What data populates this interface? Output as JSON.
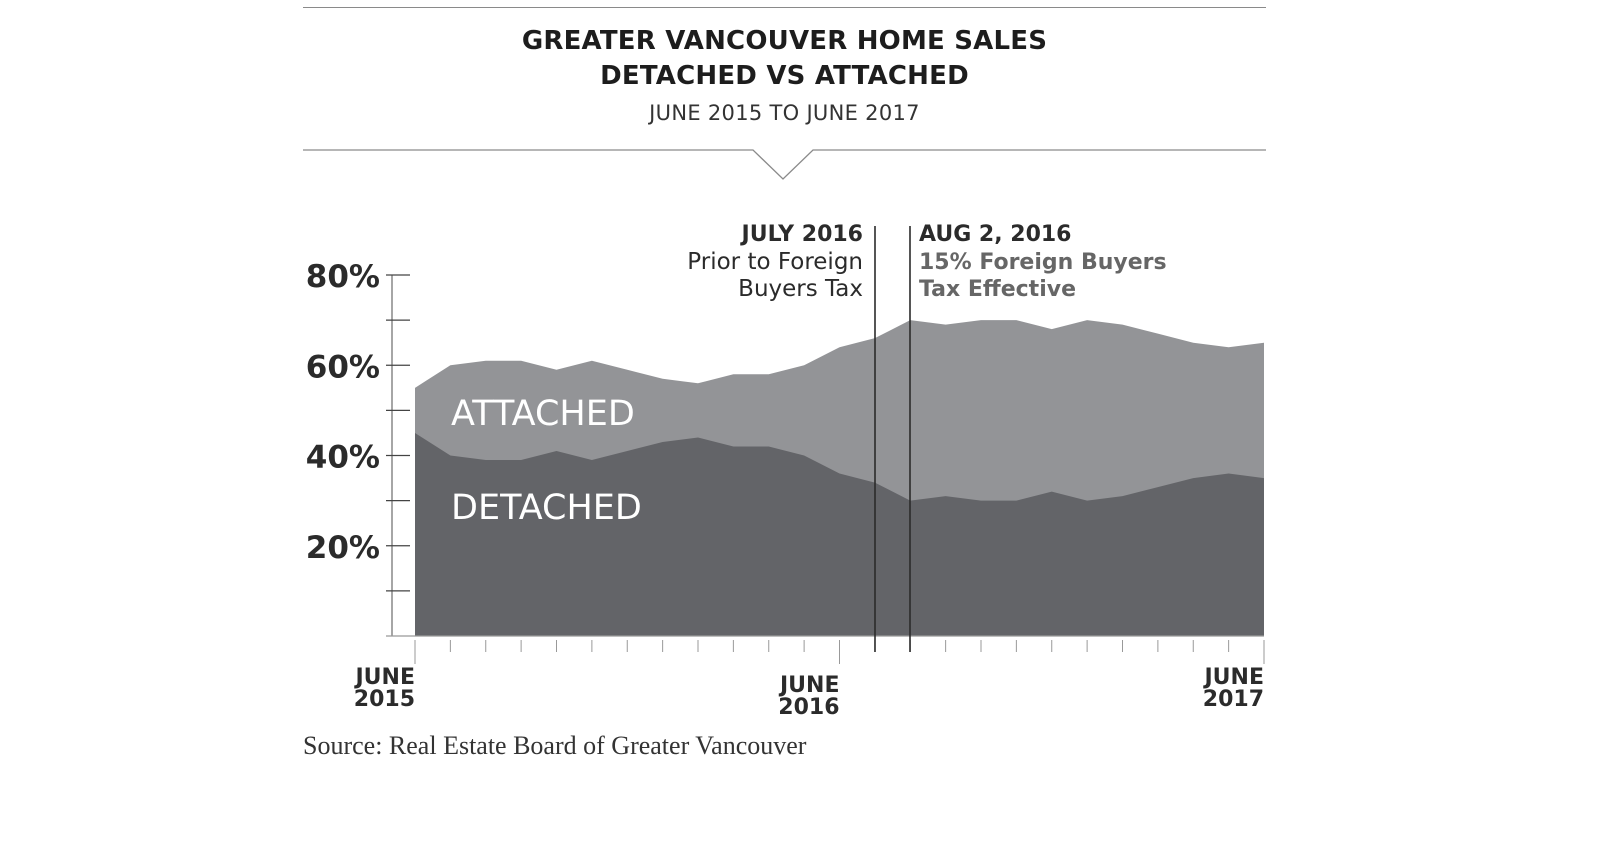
{
  "header": {
    "title_line1": "GREATER VANCOUVER HOME SALES",
    "title_line2": "DETACHED VS ATTACHED",
    "subtitle": "JUNE 2015 TO JUNE 2017"
  },
  "annotations": [
    {
      "heading": "JULY 2016",
      "lines": [
        "Prior to Foreign",
        "Buyers Tax"
      ],
      "month_index": 13,
      "align": "right"
    },
    {
      "heading": "AUG 2, 2016",
      "lines": [
        "15% Foreign Buyers",
        "Tax Effective"
      ],
      "month_index": 14,
      "align": "left"
    }
  ],
  "source": "Source: Real Estate Board of Greater Vancouver",
  "colors": {
    "attached": "#939497",
    "detached": "#636468",
    "axis": "#777777",
    "text_dark": "#2b2b2b",
    "annotation_grey": "#666666",
    "area_label": "#ffffff"
  },
  "chart_data": {
    "type": "area",
    "title": "GREATER VANCOUVER HOME SALES DETACHED VS ATTACHED",
    "subtitle": "JUNE 2015 TO JUNE 2017",
    "xlabel": "",
    "ylabel": "",
    "ylim": [
      0,
      80
    ],
    "yticks": [
      "20%",
      "40%",
      "60%",
      "80%"
    ],
    "y_minor_ticks": [
      10,
      30,
      50,
      70
    ],
    "x_labels": [
      {
        "index": 0,
        "line1": "JUNE",
        "line2": "2015"
      },
      {
        "index": 12,
        "line1": "JUNE",
        "line2": "2016"
      },
      {
        "index": 24,
        "line1": "JUNE",
        "line2": "2017"
      }
    ],
    "categories": [
      "Jun 2015",
      "Jul 2015",
      "Aug 2015",
      "Sep 2015",
      "Oct 2015",
      "Nov 2015",
      "Dec 2015",
      "Jan 2016",
      "Feb 2016",
      "Mar 2016",
      "Apr 2016",
      "May 2016",
      "Jun 2016",
      "Jul 2016",
      "Aug 2016",
      "Sep 2016",
      "Oct 2016",
      "Nov 2016",
      "Dec 2016",
      "Jan 2017",
      "Feb 2017",
      "Mar 2017",
      "Apr 2017",
      "May 2017",
      "Jun 2017"
    ],
    "stacked": true,
    "series": [
      {
        "name": "DETACHED",
        "values": [
          45,
          40,
          39,
          39,
          41,
          39,
          41,
          43,
          44,
          42,
          42,
          40,
          36,
          34,
          30,
          31,
          30,
          30,
          32,
          30,
          31,
          33,
          35,
          36,
          35
        ]
      },
      {
        "name": "ATTACHED",
        "values": [
          10,
          20,
          22,
          22,
          18,
          22,
          18,
          14,
          12,
          16,
          16,
          20,
          28,
          32,
          40,
          38,
          40,
          40,
          36,
          40,
          38,
          34,
          30,
          28,
          30
        ]
      }
    ],
    "total_top_values": [
      55,
      60,
      61,
      61,
      59,
      61,
      59,
      57,
      56,
      58,
      58,
      60,
      64,
      66,
      70,
      69,
      70,
      70,
      68,
      70,
      69,
      67,
      65,
      64,
      65
    ],
    "area_labels": [
      {
        "text": "ATTACHED",
        "series": "ATTACHED"
      },
      {
        "text": "DETACHED",
        "series": "DETACHED"
      }
    ],
    "grid": false,
    "legend": "inline labels"
  }
}
